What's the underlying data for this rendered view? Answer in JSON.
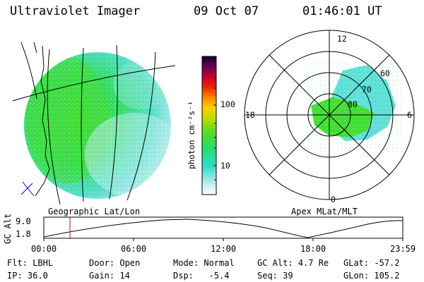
{
  "header": {
    "instrument": "Ultraviolet Imager",
    "date": "09 Oct 07",
    "time": "01:46:01 UT"
  },
  "colorbar": {
    "unit": "photon cm⁻²s⁻¹",
    "ticks": [
      "100",
      "10"
    ],
    "colors": [
      "#00ffff",
      "#00ee99",
      "#33dd33",
      "#88dd00",
      "#ccdd00",
      "#ffcc00",
      "#ff8800",
      "#ee3300",
      "#cc0022",
      "#880055",
      "#440044",
      "#110022"
    ]
  },
  "geographic_panel": {
    "label": "Geographic Lat/Lon"
  },
  "polar_panel": {
    "label": "Apex MLat/MLT",
    "mlt_labels": {
      "top": "12",
      "left": "18",
      "right": "6",
      "bottom": "0"
    },
    "lat_labels": [
      "60",
      "70",
      "80"
    ]
  },
  "altitude_strip": {
    "ylabel": "GC Alt",
    "y_ticks": [
      "9.0",
      "1.8"
    ],
    "x_ticks": [
      "00:00",
      "06:00",
      "12:00",
      "18:00",
      "23:59"
    ],
    "current_time_marker": "01:46"
  },
  "footer": {
    "filter_label": "Flt:",
    "filter": "LBHL",
    "ip_label": "IP:",
    "ip": "36.0",
    "door_label": "Door:",
    "door": "Open",
    "gain_label": "Gain:",
    "gain": "14",
    "mode_label": "Mode:",
    "mode": "Normal",
    "dsp_label": "Dsp:",
    "dsp": "-5.4",
    "gcalt_label": "GC Alt:",
    "gcalt": "4.7 Re",
    "seq_label": "Seq:",
    "seq": "39",
    "glat_label": "GLat:",
    "glat": "-57.2",
    "glon_label": "GLon:",
    "glon": "105.2"
  }
}
